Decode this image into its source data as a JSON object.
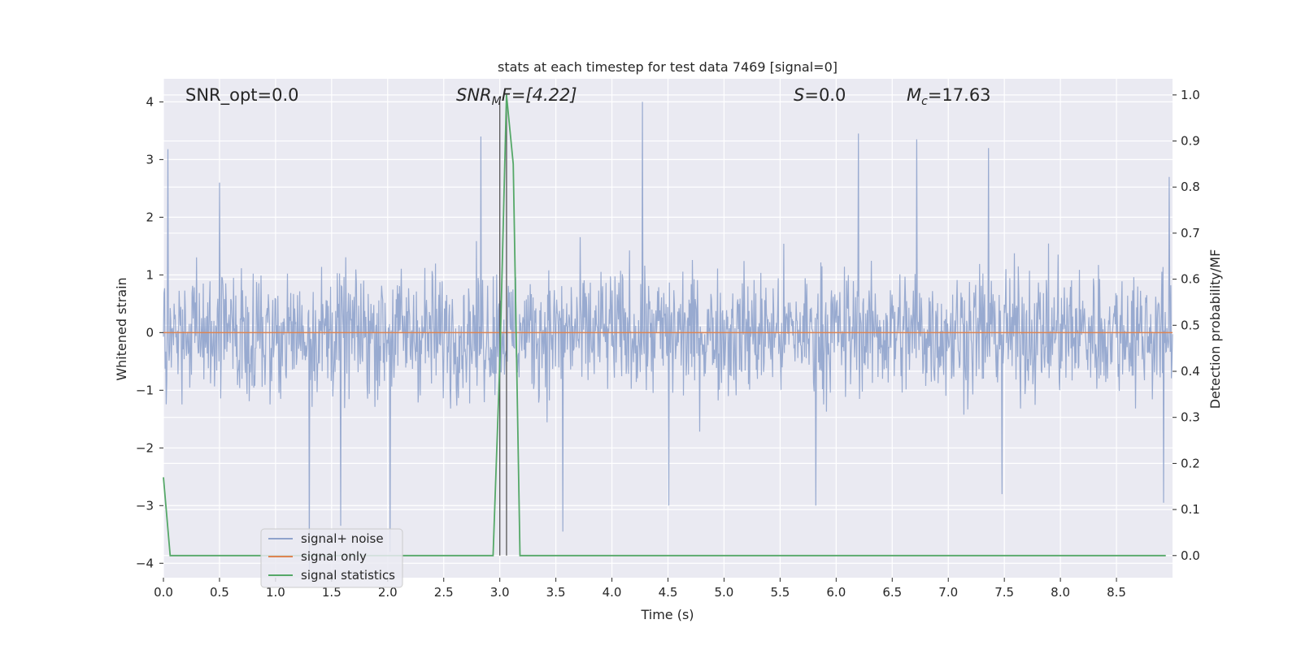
{
  "chart_data": {
    "type": "line",
    "title": "stats at each timestep for test data 7469 [signal=0]",
    "xlabel": "Time (s)",
    "ylabel_left": "Whitened strain",
    "ylabel_right": "Detection probability/MF",
    "xlim": [
      0.0,
      9.0
    ],
    "ylim_left": [
      -4.25,
      4.4
    ],
    "ylim_right": [
      -0.048,
      1.035
    ],
    "x_ticks": [
      "0.0",
      "0.5",
      "1.0",
      "1.5",
      "2.0",
      "2.5",
      "3.0",
      "3.5",
      "4.0",
      "4.5",
      "5.0",
      "5.5",
      "6.0",
      "6.5",
      "7.0",
      "7.5",
      "8.0",
      "8.5"
    ],
    "y_ticks_left": [
      "4",
      "3",
      "2",
      "1",
      "0",
      "−1",
      "−2",
      "−3",
      "−4"
    ],
    "y_ticks_right": [
      "1.0",
      "0.9",
      "0.8",
      "0.7",
      "0.6",
      "0.5",
      "0.4",
      "0.3",
      "0.2",
      "0.1",
      "0.0"
    ],
    "grid": true,
    "legend_position": "lower-left",
    "colors": {
      "signal_plus_noise": "#8fa3cc",
      "signal_only": "#dd8452",
      "signal_statistics": "#55a868",
      "background": "#eaeaf2",
      "grid": "#ffffff",
      "vline": "#555555"
    },
    "annotations": {
      "snr_opt": "SNR_opt=0.0",
      "snr_mf_prefix": "SNR",
      "snr_mf_sub": "M",
      "snr_mf_suffix": "F=[4.22]",
      "s_prefix": "S",
      "s_value": "=0.0",
      "mc_prefix": "M",
      "mc_sub": "c",
      "mc_value": "=17.63"
    },
    "vlines_x": [
      3.0,
      3.06
    ],
    "series": [
      {
        "name": "signal+ noise",
        "axis": "left",
        "note_shape": "noise",
        "peak_points": [
          [
            0.04,
            3.18
          ],
          [
            0.5,
            2.6
          ],
          [
            1.3,
            -4.1
          ],
          [
            1.58,
            -3.35
          ],
          [
            2.02,
            -3.8
          ],
          [
            2.83,
            3.4
          ],
          [
            3.56,
            -3.45
          ],
          [
            4.27,
            4.0
          ],
          [
            4.51,
            -3.0
          ],
          [
            5.82,
            -3.0
          ],
          [
            6.2,
            3.45
          ],
          [
            6.72,
            3.35
          ],
          [
            7.36,
            3.2
          ],
          [
            7.48,
            -2.8
          ],
          [
            8.92,
            -2.95
          ],
          [
            8.97,
            2.7
          ]
        ]
      },
      {
        "name": "signal only",
        "axis": "left",
        "x": [
          0.0,
          9.0
        ],
        "y": [
          0.0,
          0.0
        ]
      },
      {
        "name": "signal statistics",
        "axis": "right",
        "x": [
          0.0,
          0.06,
          0.12,
          0.18,
          2.5,
          2.94,
          3.0,
          3.06,
          3.12,
          3.18,
          3.24,
          3.3,
          4.0,
          8.94
        ],
        "y": [
          0.17,
          0.0,
          0.0,
          0.0,
          0.0,
          0.0,
          0.42,
          1.0,
          0.85,
          0.0,
          0.0,
          0.0,
          0.0,
          0.0
        ]
      }
    ]
  }
}
